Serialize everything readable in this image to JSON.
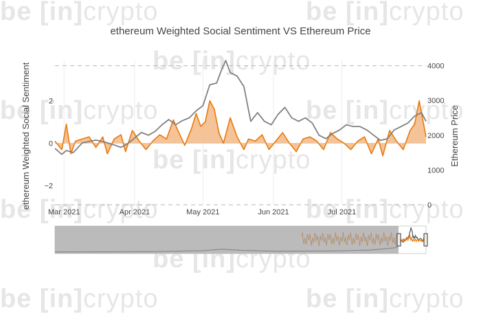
{
  "watermark": {
    "lead": "be",
    "bracket": "[in]",
    "tail": "crypto"
  },
  "chart_data": {
    "type": "line",
    "title": "ethereum Weighted Social Sentiment VS Ethereum Price",
    "x_tick_labels": [
      "Mar 2021",
      "Apr 2021",
      "May 2021",
      "Jun 2021",
      "Jul 2021"
    ],
    "x_tick_dates": [
      "2021-03-01",
      "2021-04-01",
      "2021-05-01",
      "2021-06-01",
      "2021-07-01"
    ],
    "x_range": [
      "2021-02-25",
      "2021-08-07"
    ],
    "left_axis": {
      "label": "ethereum Weighted Social Sentiment",
      "ticks": [
        2,
        0,
        -2
      ],
      "tick_labels": [
        "2",
        "0",
        "−2"
      ],
      "range": [
        -2.9,
        3.9
      ]
    },
    "right_axis": {
      "label": "Ethereum Price",
      "ticks": [
        0,
        1000,
        2000,
        3000,
        4000
      ],
      "tick_labels": [
        "0",
        "1000",
        "2000",
        "3000",
        "4000"
      ],
      "range": [
        0,
        4150
      ]
    },
    "grid": {
      "vertical": true,
      "horizontal_dashed": true
    },
    "colors": {
      "sentiment": "#e8790b",
      "sentiment_fill": "#f2b885",
      "price": "#808080",
      "range_bg": "#9e9e9e"
    },
    "series": [
      {
        "axis": "left",
        "dates": [
          "2021-02-25",
          "2021-02-28",
          "2021-03-02",
          "2021-03-04",
          "2021-03-06",
          "2021-03-09",
          "2021-03-12",
          "2021-03-15",
          "2021-03-18",
          "2021-03-20",
          "2021-03-23",
          "2021-03-26",
          "2021-03-28",
          "2021-03-31",
          "2021-04-03",
          "2021-04-06",
          "2021-04-09",
          "2021-04-12",
          "2021-04-15",
          "2021-04-18",
          "2021-04-20",
          "2021-04-23",
          "2021-04-26",
          "2021-04-28",
          "2021-04-30",
          "2021-05-02",
          "2021-05-04",
          "2021-05-06",
          "2021-05-08",
          "2021-05-10",
          "2021-05-13",
          "2021-05-16",
          "2021-05-19",
          "2021-05-21",
          "2021-05-24",
          "2021-05-27",
          "2021-05-30",
          "2021-06-02",
          "2021-06-05",
          "2021-06-08",
          "2021-06-11",
          "2021-06-14",
          "2021-06-17",
          "2021-06-20",
          "2021-06-23",
          "2021-06-26",
          "2021-06-29",
          "2021-07-02",
          "2021-07-05",
          "2021-07-08",
          "2021-07-11",
          "2021-07-14",
          "2021-07-17",
          "2021-07-19",
          "2021-07-22",
          "2021-07-25",
          "2021-07-28",
          "2021-07-31",
          "2021-08-02",
          "2021-08-04",
          "2021-08-07"
        ],
        "values": [
          0.1,
          -0.3,
          0.9,
          -0.5,
          0.1,
          0.2,
          0.3,
          -0.2,
          0.3,
          -0.5,
          0.2,
          0.4,
          -0.4,
          0.6,
          0.1,
          -0.3,
          0.1,
          0.4,
          0.2,
          1.1,
          0.6,
          -0.1,
          0.7,
          1.4,
          0.8,
          1.0,
          2.0,
          1.6,
          0.5,
          0.0,
          1.2,
          0.3,
          -0.3,
          0.2,
          0.1,
          0.4,
          -0.3,
          0.1,
          0.5,
          0.0,
          -0.4,
          0.2,
          0.3,
          0.1,
          -0.3,
          0.5,
          0.2,
          0.0,
          -0.3,
          0.1,
          0.3,
          -0.5,
          0.2,
          -0.6,
          0.6,
          0.1,
          -0.3,
          0.6,
          0.9,
          2.0,
          0.3
        ]
      },
      {
        "axis": "right",
        "dates": [
          "2021-02-25",
          "2021-02-28",
          "2021-03-02",
          "2021-03-05",
          "2021-03-09",
          "2021-03-12",
          "2021-03-15",
          "2021-03-19",
          "2021-03-23",
          "2021-03-26",
          "2021-03-29",
          "2021-04-01",
          "2021-04-04",
          "2021-04-07",
          "2021-04-10",
          "2021-04-13",
          "2021-04-16",
          "2021-04-19",
          "2021-04-22",
          "2021-04-25",
          "2021-04-28",
          "2021-05-01",
          "2021-05-04",
          "2021-05-07",
          "2021-05-09",
          "2021-05-11",
          "2021-05-13",
          "2021-05-16",
          "2021-05-19",
          "2021-05-22",
          "2021-05-25",
          "2021-05-28",
          "2021-05-31",
          "2021-06-03",
          "2021-06-06",
          "2021-06-09",
          "2021-06-12",
          "2021-06-15",
          "2021-06-18",
          "2021-06-21",
          "2021-06-24",
          "2021-06-27",
          "2021-06-30",
          "2021-07-03",
          "2021-07-06",
          "2021-07-09",
          "2021-07-12",
          "2021-07-15",
          "2021-07-18",
          "2021-07-21",
          "2021-07-24",
          "2021-07-27",
          "2021-07-30",
          "2021-08-02",
          "2021-08-05",
          "2021-08-07"
        ],
        "values": [
          1620,
          1450,
          1560,
          1500,
          1780,
          1820,
          1860,
          1800,
          1720,
          1650,
          1760,
          1920,
          2080,
          2000,
          2110,
          2300,
          2450,
          2300,
          2420,
          2500,
          2700,
          2850,
          3450,
          3500,
          3850,
          4150,
          3800,
          3700,
          3400,
          2400,
          2650,
          2400,
          2300,
          2600,
          2800,
          2500,
          2400,
          2500,
          2350,
          2000,
          1900,
          2050,
          2150,
          2300,
          2250,
          2250,
          2150,
          2000,
          1850,
          1900,
          2150,
          2250,
          2350,
          2550,
          2650,
          2400
        ]
      }
    ]
  }
}
